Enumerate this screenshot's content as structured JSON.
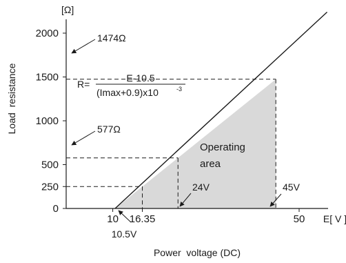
{
  "chart_data": {
    "type": "area",
    "title": "",
    "xlabel": "Power  voltage (DC)",
    "ylabel": "Load  resistance",
    "x_unit": "E[ V ]",
    "y_unit": "[Ω]",
    "xlim": [
      0,
      57
    ],
    "ylim": [
      0,
      2000
    ],
    "xticks": [
      {
        "value": 10,
        "label": "10"
      },
      {
        "value": 16.35,
        "label": "16.35"
      },
      {
        "value": 50,
        "label": "50"
      }
    ],
    "yticks": [
      {
        "value": 0,
        "label": "0"
      },
      {
        "value": 250,
        "label": "250"
      },
      {
        "value": 500,
        "label": "500"
      },
      {
        "value": 1000,
        "label": "1000"
      },
      {
        "value": 1500,
        "label": "1500"
      },
      {
        "value": 2000,
        "label": "2000"
      }
    ],
    "line": {
      "x": [
        10.5,
        56
      ],
      "y": [
        0,
        2240
      ]
    },
    "shaded_region": {
      "label_line1": "Operating",
      "label_line2": "area",
      "x": [
        10.5,
        45,
        45
      ],
      "y": [
        0,
        1474,
        0
      ],
      "color": "#d9d9d9"
    },
    "reference_points": [
      {
        "x": 16.35,
        "y": 250
      },
      {
        "x": 24,
        "y": 577
      },
      {
        "x": 45,
        "y": 1474
      }
    ],
    "annotations": {
      "r1474": "1474Ω",
      "r577": "577Ω",
      "v105": "10.5V",
      "v24": "24V",
      "v45": "45V"
    },
    "formula": {
      "prefix": "R=",
      "numerator": "E-10.5",
      "denominator": "(Imax+0.9)x10",
      "exponent": "-3"
    }
  }
}
